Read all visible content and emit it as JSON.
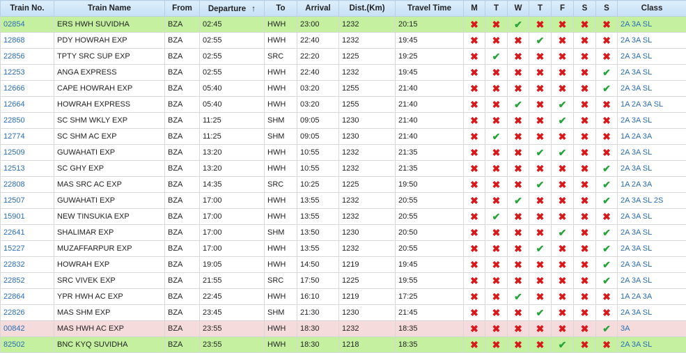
{
  "headers": {
    "train_no": "Train No.",
    "train_name": "Train Name",
    "from": "From",
    "departure": "Departure",
    "departure_sort_icon": "↑",
    "to": "To",
    "arrival": "Arrival",
    "distance": "Dist.(Km)",
    "travel_time": "Travel Time",
    "days": [
      "M",
      "T",
      "W",
      "T",
      "F",
      "S",
      "S"
    ],
    "class": "Class"
  },
  "rows": [
    {
      "no": "02854",
      "name": "ERS HWH SUVIDHA",
      "from": "BZA",
      "dep": "02:45",
      "to": "HWH",
      "arr": "23:00",
      "dist": "1232",
      "time": "20:15",
      "days": [
        0,
        0,
        1,
        0,
        0,
        0,
        0
      ],
      "cls": "2A 3A SL",
      "highlight": "green"
    },
    {
      "no": "12868",
      "name": "PDY HOWRAH EXP",
      "from": "BZA",
      "dep": "02:55",
      "to": "HWH",
      "arr": "22:40",
      "dist": "1232",
      "time": "19:45",
      "days": [
        0,
        0,
        0,
        1,
        0,
        0,
        0
      ],
      "cls": "2A 3A SL",
      "highlight": "white"
    },
    {
      "no": "22856",
      "name": "TPTY SRC SUP EXP",
      "from": "BZA",
      "dep": "02:55",
      "to": "SRC",
      "arr": "22:20",
      "dist": "1225",
      "time": "19:25",
      "days": [
        0,
        1,
        0,
        0,
        0,
        0,
        0
      ],
      "cls": "2A 3A SL",
      "highlight": "white"
    },
    {
      "no": "12253",
      "name": "ANGA EXPRESS",
      "from": "BZA",
      "dep": "02:55",
      "to": "HWH",
      "arr": "22:40",
      "dist": "1232",
      "time": "19:45",
      "days": [
        0,
        0,
        0,
        0,
        0,
        0,
        1
      ],
      "cls": "2A 3A SL",
      "highlight": "white"
    },
    {
      "no": "12666",
      "name": "CAPE HOWRAH EXP",
      "from": "BZA",
      "dep": "05:40",
      "to": "HWH",
      "arr": "03:20",
      "dist": "1255",
      "time": "21:40",
      "days": [
        0,
        0,
        0,
        0,
        0,
        0,
        1
      ],
      "cls": "2A 3A SL",
      "highlight": "white"
    },
    {
      "no": "12664",
      "name": "HOWRAH EXPRESS",
      "from": "BZA",
      "dep": "05:40",
      "to": "HWH",
      "arr": "03:20",
      "dist": "1255",
      "time": "21:40",
      "days": [
        0,
        0,
        1,
        0,
        1,
        0,
        0
      ],
      "cls": "1A 2A 3A SL",
      "highlight": "white"
    },
    {
      "no": "22850",
      "name": "SC SHM WKLY EXP",
      "from": "BZA",
      "dep": "11:25",
      "to": "SHM",
      "arr": "09:05",
      "dist": "1230",
      "time": "21:40",
      "days": [
        0,
        0,
        0,
        0,
        1,
        0,
        0
      ],
      "cls": "2A 3A SL",
      "highlight": "white"
    },
    {
      "no": "12774",
      "name": "SC SHM AC EXP",
      "from": "BZA",
      "dep": "11:25",
      "to": "SHM",
      "arr": "09:05",
      "dist": "1230",
      "time": "21:40",
      "days": [
        0,
        1,
        0,
        0,
        0,
        0,
        0
      ],
      "cls": "1A 2A 3A",
      "highlight": "white"
    },
    {
      "no": "12509",
      "name": "GUWAHATI EXP",
      "from": "BZA",
      "dep": "13:20",
      "to": "HWH",
      "arr": "10:55",
      "dist": "1232",
      "time": "21:35",
      "days": [
        0,
        0,
        0,
        1,
        1,
        0,
        0
      ],
      "cls": "2A 3A SL",
      "highlight": "white"
    },
    {
      "no": "12513",
      "name": "SC GHY EXP",
      "from": "BZA",
      "dep": "13:20",
      "to": "HWH",
      "arr": "10:55",
      "dist": "1232",
      "time": "21:35",
      "days": [
        0,
        0,
        0,
        0,
        0,
        0,
        1
      ],
      "cls": "2A 3A SL",
      "highlight": "white"
    },
    {
      "no": "22808",
      "name": "MAS SRC AC EXP",
      "from": "BZA",
      "dep": "14:35",
      "to": "SRC",
      "arr": "10:25",
      "dist": "1225",
      "time": "19:50",
      "days": [
        0,
        0,
        0,
        1,
        0,
        0,
        1
      ],
      "cls": "1A 2A 3A",
      "highlight": "white"
    },
    {
      "no": "12507",
      "name": "GUWAHATI EXP",
      "from": "BZA",
      "dep": "17:00",
      "to": "HWH",
      "arr": "13:55",
      "dist": "1232",
      "time": "20:55",
      "days": [
        0,
        0,
        1,
        0,
        0,
        0,
        1
      ],
      "cls": "2A 3A SL 2S",
      "highlight": "white"
    },
    {
      "no": "15901",
      "name": "NEW TINSUKIA EXP",
      "from": "BZA",
      "dep": "17:00",
      "to": "HWH",
      "arr": "13:55",
      "dist": "1232",
      "time": "20:55",
      "days": [
        0,
        1,
        0,
        0,
        0,
        0,
        0
      ],
      "cls": "2A 3A SL",
      "highlight": "white"
    },
    {
      "no": "22641",
      "name": "SHALIMAR EXP",
      "from": "BZA",
      "dep": "17:00",
      "to": "SHM",
      "arr": "13:50",
      "dist": "1230",
      "time": "20:50",
      "days": [
        0,
        0,
        0,
        0,
        1,
        0,
        1
      ],
      "cls": "2A 3A SL",
      "highlight": "white"
    },
    {
      "no": "15227",
      "name": "MUZAFFARPUR EXP",
      "from": "BZA",
      "dep": "17:00",
      "to": "HWH",
      "arr": "13:55",
      "dist": "1232",
      "time": "20:55",
      "days": [
        0,
        0,
        0,
        1,
        0,
        0,
        1
      ],
      "cls": "2A 3A SL",
      "highlight": "white"
    },
    {
      "no": "22832",
      "name": "HOWRAH EXP",
      "from": "BZA",
      "dep": "19:05",
      "to": "HWH",
      "arr": "14:50",
      "dist": "1219",
      "time": "19:45",
      "days": [
        0,
        0,
        0,
        0,
        0,
        0,
        1
      ],
      "cls": "2A 3A SL",
      "highlight": "white"
    },
    {
      "no": "22852",
      "name": "SRC VIVEK EXP",
      "from": "BZA",
      "dep": "21:55",
      "to": "SRC",
      "arr": "17:50",
      "dist": "1225",
      "time": "19:55",
      "days": [
        0,
        0,
        0,
        0,
        0,
        0,
        1
      ],
      "cls": "2A 3A SL",
      "highlight": "white"
    },
    {
      "no": "22864",
      "name": "YPR HWH AC EXP",
      "from": "BZA",
      "dep": "22:45",
      "to": "HWH",
      "arr": "16:10",
      "dist": "1219",
      "time": "17:25",
      "days": [
        0,
        0,
        1,
        0,
        0,
        0,
        0
      ],
      "cls": "1A 2A 3A",
      "highlight": "white"
    },
    {
      "no": "22826",
      "name": "MAS SHM EXP",
      "from": "BZA",
      "dep": "23:45",
      "to": "SHM",
      "arr": "21:30",
      "dist": "1230",
      "time": "21:45",
      "days": [
        0,
        0,
        0,
        1,
        0,
        0,
        0
      ],
      "cls": "2A 3A SL",
      "highlight": "white"
    },
    {
      "no": "00842",
      "name": "MAS HWH AC EXP",
      "from": "BZA",
      "dep": "23:55",
      "to": "HWH",
      "arr": "18:30",
      "dist": "1232",
      "time": "18:35",
      "days": [
        0,
        0,
        0,
        0,
        0,
        0,
        1
      ],
      "cls": "3A",
      "highlight": "pink"
    },
    {
      "no": "82502",
      "name": "BNC KYQ SUVIDHA",
      "from": "BZA",
      "dep": "23:55",
      "to": "HWH",
      "arr": "18:30",
      "dist": "1218",
      "time": "18:35",
      "days": [
        0,
        0,
        0,
        0,
        1,
        0,
        0
      ],
      "cls": "2A 3A SL",
      "highlight": "green"
    }
  ],
  "icons": {
    "yes": "check-icon",
    "no": "cross-icon",
    "yes_glyph": "✔",
    "no_glyph": "✖"
  },
  "colors": {
    "header_bg": "#c6e0f5",
    "row_green": "#c4f0a0",
    "row_pink": "#f5dbdb",
    "link": "#2a6db5",
    "check": "#27a33c",
    "cross": "#d8191c"
  }
}
